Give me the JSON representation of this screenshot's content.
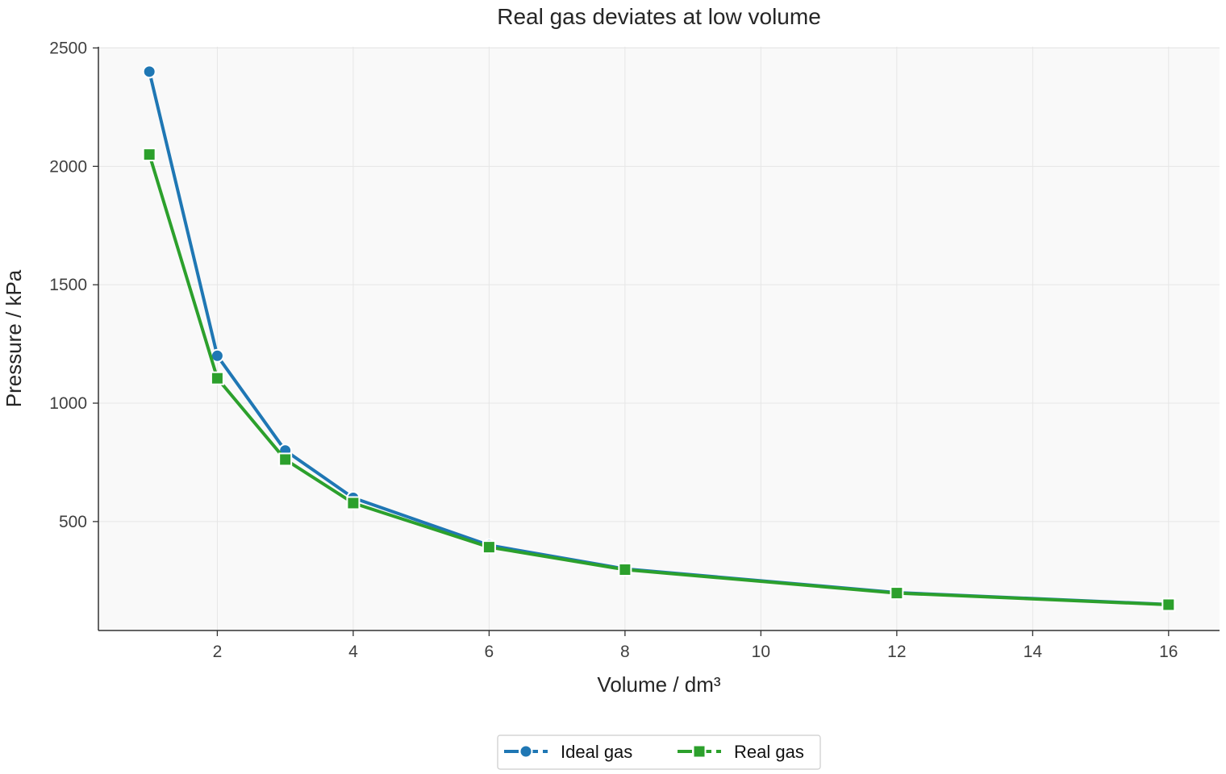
{
  "chart_data": {
    "type": "line",
    "title": "Real gas deviates at low volume",
    "xlabel": "Volume / dm³",
    "ylabel": "Pressure / kPa",
    "x": [
      1,
      2,
      3,
      4,
      6,
      8,
      12,
      16
    ],
    "xlim": [
      0.25,
      16.75
    ],
    "ylim": [
      40,
      2505
    ],
    "xticks": [
      2,
      4,
      6,
      8,
      10,
      12,
      14,
      16
    ],
    "yticks": [
      500,
      1000,
      1500,
      2000,
      2500
    ],
    "grid": true,
    "legend_position": "bottom-center",
    "series": [
      {
        "name": "Ideal gas",
        "marker": "circle",
        "color": "#1f77b4",
        "values": [
          2400,
          1200,
          800,
          600,
          400,
          300,
          200,
          150
        ]
      },
      {
        "name": "Real gas",
        "marker": "square",
        "color": "#2ca02c",
        "values": [
          2050,
          1105,
          762,
          578,
          392,
          297,
          198,
          149
        ]
      }
    ]
  }
}
